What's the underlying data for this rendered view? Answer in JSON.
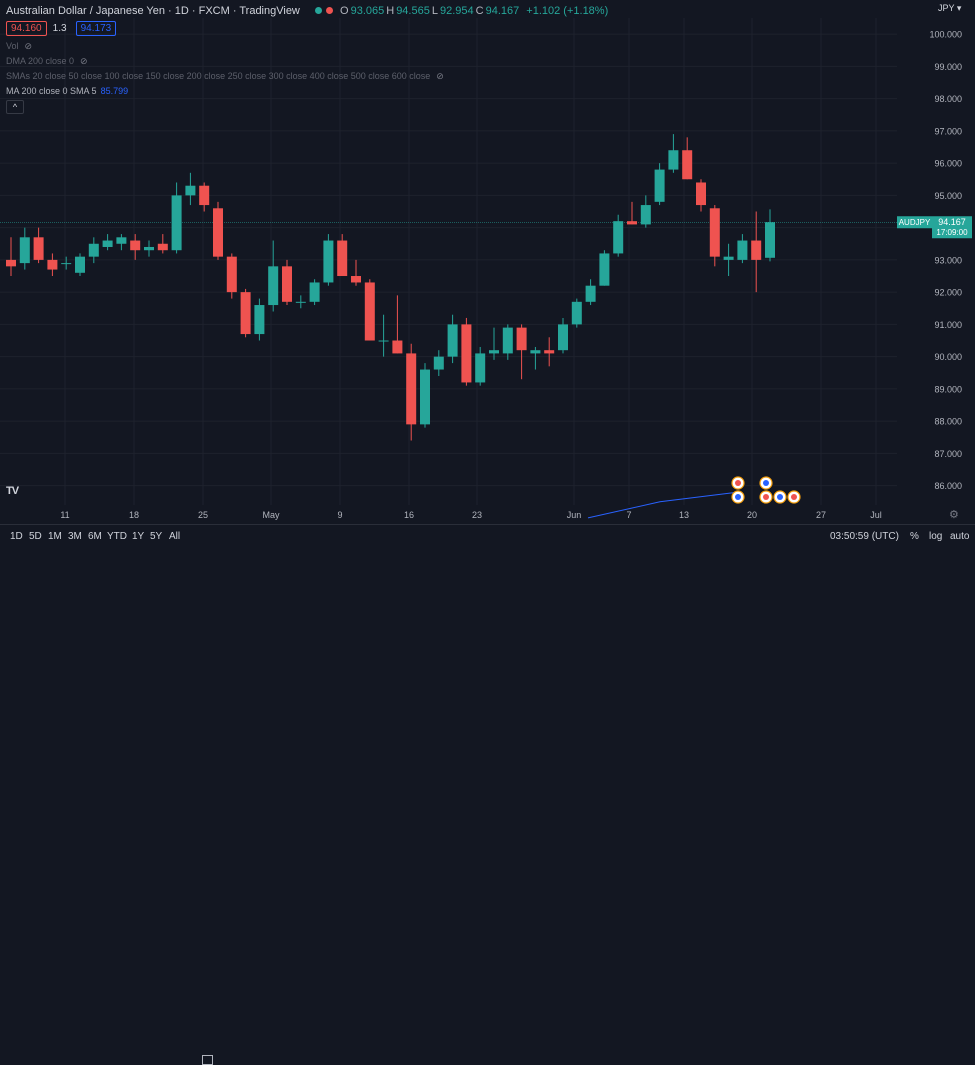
{
  "header": {
    "symbol_title": "Australian Dollar / Japanese Yen · 1D · FXCM · TradingView",
    "ohlc": [
      {
        "label": "O",
        "value": "93.065"
      },
      {
        "label": "H",
        "value": "94.565"
      },
      {
        "label": "L",
        "value": "92.954"
      },
      {
        "label": "C",
        "value": "94.167"
      }
    ],
    "change": "+1.102 (+1.18%)",
    "bid": "94.160",
    "spread": "1.3",
    "ask": "94.173",
    "currency": "JPY"
  },
  "indicators": [
    {
      "label": "Vol",
      "active": false
    },
    {
      "label": "DMA 200 close 0",
      "active": false
    },
    {
      "label": "SMAs 20 close 50 close 100 close 150 close 200 close 250 close 300 close 400 close 500 close 600 close",
      "active": false
    },
    {
      "label": "MA 200 close 0 SMA 5",
      "active": true,
      "value": "85.799"
    }
  ],
  "collapse_label": "^",
  "logo": "TV",
  "price_tag": {
    "symbol": "AUDJPY",
    "price": "94.167",
    "countdown": "17:09:00"
  },
  "bottom_bar": {
    "timeframes": [
      "1D",
      "5D",
      "1M",
      "3M",
      "6M",
      "YTD",
      "1Y",
      "5Y",
      "All"
    ],
    "clock": "03:50:59 (UTC)",
    "options": [
      "%",
      "log",
      "auto"
    ]
  },
  "colors": {
    "up": "#26a69a",
    "down": "#ef5350",
    "ma": "#2962ff",
    "background": "#131722",
    "grid": "#1e222d"
  },
  "chart_data": {
    "type": "candlestick",
    "ylim": [
      85.4,
      100.5
    ],
    "y_ticks": [
      "86.000",
      "87.000",
      "88.000",
      "89.000",
      "90.000",
      "91.000",
      "92.000",
      "93.000",
      "94.000",
      "95.000",
      "96.000",
      "97.000",
      "98.000",
      "99.000",
      "100.000"
    ],
    "x_ticks": [
      "11",
      "18",
      "25",
      "May",
      "9",
      "16",
      "23",
      "Jun",
      "7",
      "13",
      "20",
      "27",
      "Jul"
    ],
    "current_price": 94.167,
    "candles": [
      {
        "o": 93.0,
        "h": 93.7,
        "l": 92.5,
        "c": 92.8
      },
      {
        "o": 92.9,
        "h": 94.0,
        "l": 92.7,
        "c": 93.7
      },
      {
        "o": 93.7,
        "h": 94.0,
        "l": 92.9,
        "c": 93.0
      },
      {
        "o": 93.0,
        "h": 93.2,
        "l": 92.5,
        "c": 92.7
      },
      {
        "o": 92.9,
        "h": 93.1,
        "l": 92.7,
        "c": 92.9
      },
      {
        "o": 92.6,
        "h": 93.2,
        "l": 92.5,
        "c": 93.1
      },
      {
        "o": 93.1,
        "h": 93.7,
        "l": 92.9,
        "c": 93.5
      },
      {
        "o": 93.4,
        "h": 93.8,
        "l": 93.3,
        "c": 93.6
      },
      {
        "o": 93.5,
        "h": 93.8,
        "l": 93.3,
        "c": 93.7
      },
      {
        "o": 93.6,
        "h": 93.8,
        "l": 93.0,
        "c": 93.3
      },
      {
        "o": 93.3,
        "h": 93.6,
        "l": 93.1,
        "c": 93.4
      },
      {
        "o": 93.5,
        "h": 93.8,
        "l": 93.2,
        "c": 93.3
      },
      {
        "o": 93.3,
        "h": 95.4,
        "l": 93.2,
        "c": 95.0
      },
      {
        "o": 95.0,
        "h": 95.7,
        "l": 94.7,
        "c": 95.3
      },
      {
        "o": 95.3,
        "h": 95.4,
        "l": 94.5,
        "c": 94.7
      },
      {
        "o": 94.6,
        "h": 94.8,
        "l": 93.0,
        "c": 93.1
      },
      {
        "o": 93.1,
        "h": 93.2,
        "l": 91.8,
        "c": 92.0
      },
      {
        "o": 92.0,
        "h": 92.1,
        "l": 90.6,
        "c": 90.7
      },
      {
        "o": 90.7,
        "h": 91.8,
        "l": 90.5,
        "c": 91.6
      },
      {
        "o": 91.6,
        "h": 93.6,
        "l": 91.4,
        "c": 92.8
      },
      {
        "o": 92.8,
        "h": 93.0,
        "l": 91.6,
        "c": 91.7
      },
      {
        "o": 91.7,
        "h": 91.9,
        "l": 91.5,
        "c": 91.7
      },
      {
        "o": 91.7,
        "h": 92.4,
        "l": 91.6,
        "c": 92.3
      },
      {
        "o": 92.3,
        "h": 93.8,
        "l": 92.2,
        "c": 93.6
      },
      {
        "o": 93.6,
        "h": 93.8,
        "l": 92.5,
        "c": 92.5
      },
      {
        "o": 92.5,
        "h": 93.0,
        "l": 92.2,
        "c": 92.3
      },
      {
        "o": 92.3,
        "h": 92.4,
        "l": 90.5,
        "c": 90.5
      },
      {
        "o": 90.5,
        "h": 91.3,
        "l": 90.0,
        "c": 90.5
      },
      {
        "o": 90.5,
        "h": 91.9,
        "l": 90.1,
        "c": 90.1
      },
      {
        "o": 90.1,
        "h": 90.4,
        "l": 87.4,
        "c": 87.9
      },
      {
        "o": 87.9,
        "h": 89.8,
        "l": 87.8,
        "c": 89.6
      },
      {
        "o": 89.6,
        "h": 90.2,
        "l": 89.4,
        "c": 90.0
      },
      {
        "o": 90.0,
        "h": 91.3,
        "l": 89.8,
        "c": 91.0
      },
      {
        "o": 91.0,
        "h": 91.2,
        "l": 89.1,
        "c": 89.2
      },
      {
        "o": 89.2,
        "h": 90.3,
        "l": 89.1,
        "c": 90.1
      },
      {
        "o": 90.1,
        "h": 90.9,
        "l": 89.9,
        "c": 90.2
      },
      {
        "o": 90.1,
        "h": 91.0,
        "l": 89.9,
        "c": 90.9
      },
      {
        "o": 90.9,
        "h": 91.0,
        "l": 89.3,
        "c": 90.2
      },
      {
        "o": 90.1,
        "h": 90.3,
        "l": 89.6,
        "c": 90.2
      },
      {
        "o": 90.2,
        "h": 90.6,
        "l": 89.7,
        "c": 90.1
      },
      {
        "o": 90.2,
        "h": 91.2,
        "l": 90.1,
        "c": 91.0
      },
      {
        "o": 91.0,
        "h": 91.8,
        "l": 90.9,
        "c": 91.7
      },
      {
        "o": 91.7,
        "h": 92.4,
        "l": 91.6,
        "c": 92.2
      },
      {
        "o": 92.2,
        "h": 93.3,
        "l": 92.2,
        "c": 93.2
      },
      {
        "o": 93.2,
        "h": 94.4,
        "l": 93.1,
        "c": 94.2
      },
      {
        "o": 94.2,
        "h": 94.8,
        "l": 94.1,
        "c": 94.1
      },
      {
        "o": 94.1,
        "h": 95.0,
        "l": 94.0,
        "c": 94.7
      },
      {
        "o": 94.8,
        "h": 96.0,
        "l": 94.7,
        "c": 95.8
      },
      {
        "o": 95.8,
        "h": 96.9,
        "l": 95.7,
        "c": 96.4
      },
      {
        "o": 96.4,
        "h": 96.8,
        "l": 95.5,
        "c": 95.5
      },
      {
        "o": 95.4,
        "h": 95.5,
        "l": 94.5,
        "c": 94.7
      },
      {
        "o": 94.6,
        "h": 94.7,
        "l": 92.8,
        "c": 93.1
      },
      {
        "o": 93.0,
        "h": 93.5,
        "l": 92.5,
        "c": 93.1
      },
      {
        "o": 93.0,
        "h": 93.8,
        "l": 92.9,
        "c": 93.6
      },
      {
        "o": 93.6,
        "h": 94.5,
        "l": 92.0,
        "c": 93.0
      },
      {
        "o": 93.065,
        "h": 94.565,
        "l": 92.954,
        "c": 94.167
      }
    ],
    "ma_line": [
      85.0,
      85.5,
      85.799
    ]
  }
}
